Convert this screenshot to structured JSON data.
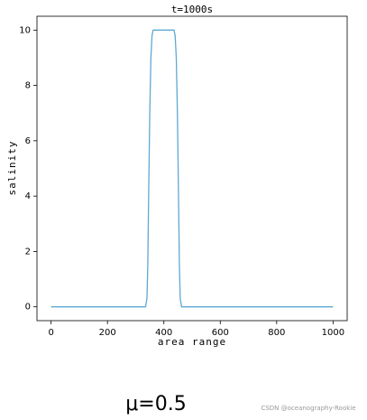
{
  "chart_data": {
    "type": "line",
    "title": "t=1000s",
    "xlabel": "area range",
    "ylabel": "salinity",
    "x": [
      0,
      335,
      340,
      343,
      346,
      350,
      354,
      358,
      362,
      436,
      440,
      444,
      448,
      452,
      455,
      458,
      463,
      1000
    ],
    "series": [
      {
        "color": "#5fa8d3",
        "values": [
          0,
          0,
          0.3,
          1.5,
          4,
          7,
          9,
          9.8,
          10,
          10,
          9.8,
          9,
          7,
          4,
          1.5,
          0.3,
          0,
          0
        ]
      }
    ],
    "xlim": [
      -50,
      1050
    ],
    "ylim": [
      -0.5,
      10.5
    ],
    "xticks": [
      0,
      200,
      400,
      600,
      800,
      1000
    ],
    "yticks": [
      0,
      2,
      4,
      6,
      8,
      10
    ],
    "grid": false
  },
  "caption": "μ=0.5",
  "watermark": "CSDN @oceanography-Rookie"
}
